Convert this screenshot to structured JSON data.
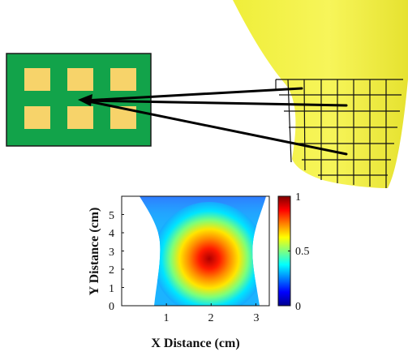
{
  "diagram": {
    "board_color": "#12a34a",
    "pad_color": "#f7d36a",
    "hand_color": "#f3f13f",
    "pads": {
      "rows": 2,
      "cols": 3
    },
    "grid": {
      "rows": 7,
      "cols": 8
    },
    "arrows": 3
  },
  "chart_data": {
    "type": "heatmap",
    "xlabel": "X Distance (cm)",
    "ylabel": "Y Distance (cm)",
    "xlim": [
      0,
      3.3
    ],
    "ylim": [
      0,
      6
    ],
    "x_ticks": [
      "1",
      "2",
      "3"
    ],
    "y_ticks": [
      "0",
      "1",
      "2",
      "3",
      "4",
      "5"
    ],
    "peak": {
      "x": 1.9,
      "y": 2.5,
      "value": 1
    },
    "colorbar": {
      "ticks": [
        "0",
        "0.5",
        "1"
      ],
      "range": [
        0,
        1
      ],
      "colormap": "jet"
    }
  }
}
